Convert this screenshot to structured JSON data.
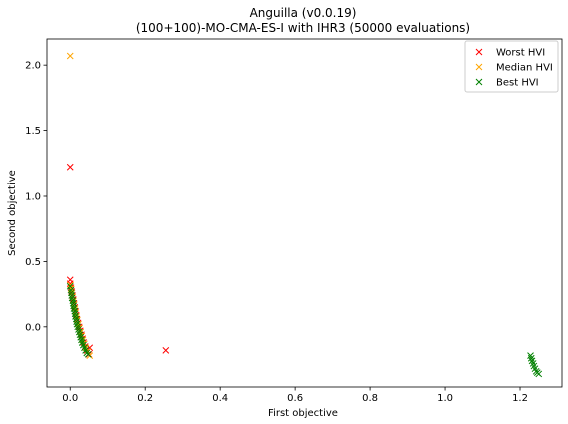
{
  "chart_data": {
    "type": "scatter",
    "title_line1": "Anguilla (v0.0.19)",
    "title_line2": "(100+100)-MO-CMA-ES-I with IHR3 (50000 evaluations)",
    "xlabel": "First objective",
    "ylabel": "Second objective",
    "xlim": [
      -0.062,
      1.312
    ],
    "ylim": [
      -0.46,
      2.2
    ],
    "xticks": [
      0.0,
      0.2,
      0.4,
      0.6,
      0.8,
      1.0,
      1.2
    ],
    "xtick_labels": [
      "0.0",
      "0.2",
      "0.4",
      "0.6",
      "0.8",
      "1.0",
      "1.2"
    ],
    "yticks": [
      0.0,
      0.5,
      1.0,
      1.5,
      2.0
    ],
    "ytick_labels": [
      "0.0",
      "0.5",
      "1.0",
      "1.5",
      "2.0"
    ],
    "grid": false,
    "legend_position": "top-right",
    "marker": "x",
    "series": [
      {
        "name": "Worst HVI",
        "color": "#ff0000",
        "points": [
          [
            0.0,
            1.22
          ],
          [
            0.0,
            0.36
          ],
          [
            0.255,
            -0.18
          ],
          [
            0.052,
            -0.16
          ],
          [
            0.0,
            0.33
          ],
          [
            0.002,
            0.3
          ],
          [
            0.004,
            0.27
          ],
          [
            0.006,
            0.24
          ],
          [
            0.008,
            0.21
          ],
          [
            0.01,
            0.18
          ],
          [
            0.012,
            0.15
          ],
          [
            0.014,
            0.12
          ],
          [
            0.016,
            0.09
          ],
          [
            0.018,
            0.06
          ],
          [
            0.021,
            0.03
          ],
          [
            0.024,
            0.0
          ],
          [
            0.027,
            -0.03
          ],
          [
            0.03,
            -0.06
          ],
          [
            0.033,
            -0.09
          ],
          [
            0.036,
            -0.12
          ],
          [
            0.04,
            -0.15
          ],
          [
            0.045,
            -0.18
          ],
          [
            0.05,
            -0.21
          ]
        ]
      },
      {
        "name": "Median HVI",
        "color": "#ffa500",
        "points": [
          [
            0.0,
            2.07
          ],
          [
            0.001,
            0.32
          ],
          [
            0.003,
            0.29
          ],
          [
            0.005,
            0.26
          ],
          [
            0.007,
            0.23
          ],
          [
            0.009,
            0.2
          ],
          [
            0.011,
            0.17
          ],
          [
            0.013,
            0.14
          ],
          [
            0.015,
            0.11
          ],
          [
            0.017,
            0.08
          ],
          [
            0.019,
            0.05
          ],
          [
            0.022,
            0.02
          ],
          [
            0.025,
            -0.01
          ],
          [
            0.028,
            -0.04
          ],
          [
            0.031,
            -0.07
          ],
          [
            0.034,
            -0.1
          ],
          [
            0.038,
            -0.13
          ],
          [
            0.042,
            -0.16
          ],
          [
            0.047,
            -0.19
          ],
          [
            0.052,
            -0.22
          ]
        ]
      },
      {
        "name": "Best HVI",
        "color": "#008000",
        "points": [
          [
            0.0,
            0.31
          ],
          [
            0.002,
            0.28
          ],
          [
            0.003,
            0.26
          ],
          [
            0.004,
            0.24
          ],
          [
            0.005,
            0.22
          ],
          [
            0.007,
            0.2
          ],
          [
            0.008,
            0.18
          ],
          [
            0.009,
            0.16
          ],
          [
            0.01,
            0.14
          ],
          [
            0.012,
            0.12
          ],
          [
            0.013,
            0.1
          ],
          [
            0.014,
            0.08
          ],
          [
            0.016,
            0.06
          ],
          [
            0.017,
            0.04
          ],
          [
            0.018,
            0.02
          ],
          [
            0.02,
            0.0
          ],
          [
            0.022,
            -0.02
          ],
          [
            0.024,
            -0.04
          ],
          [
            0.026,
            -0.06
          ],
          [
            0.028,
            -0.08
          ],
          [
            0.03,
            -0.1
          ],
          [
            0.032,
            -0.12
          ],
          [
            0.035,
            -0.14
          ],
          [
            0.038,
            -0.16
          ],
          [
            0.041,
            -0.18
          ],
          [
            0.044,
            -0.2
          ],
          [
            0.048,
            -0.21
          ],
          [
            1.228,
            -0.22
          ],
          [
            1.23,
            -0.24
          ],
          [
            1.232,
            -0.26
          ],
          [
            1.235,
            -0.28
          ],
          [
            1.237,
            -0.3
          ],
          [
            1.24,
            -0.32
          ],
          [
            1.243,
            -0.34
          ],
          [
            1.246,
            -0.35
          ],
          [
            1.25,
            -0.36
          ]
        ]
      }
    ]
  }
}
